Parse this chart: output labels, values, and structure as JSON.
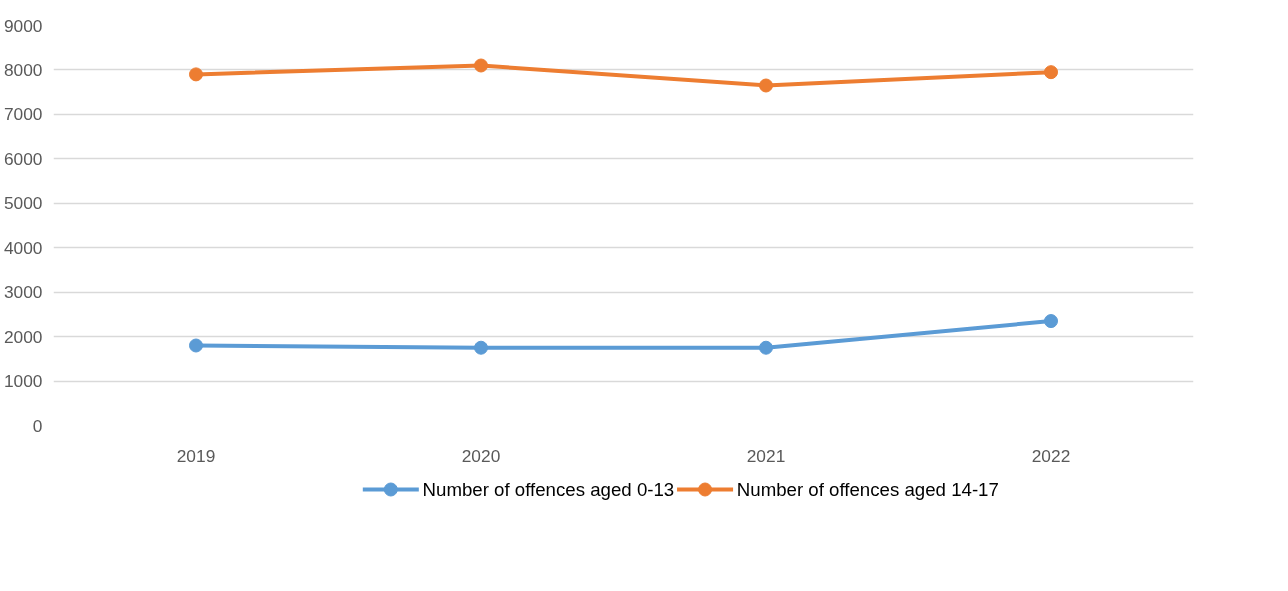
{
  "chart_data": {
    "type": "line",
    "categories": [
      "2019",
      "2020",
      "2021",
      "2022"
    ],
    "series": [
      {
        "name": "Number of offences aged 0-13",
        "color": "#5b9bd5",
        "values": [
          1800,
          1750,
          1750,
          2350
        ]
      },
      {
        "name": "Number of offences aged 14-17",
        "color": "#ed7d31",
        "values": [
          7900,
          8100,
          7650,
          7950
        ]
      }
    ],
    "ylim": [
      0,
      9000
    ],
    "yticks": [
      0,
      1000,
      2000,
      3000,
      4000,
      5000,
      6000,
      7000,
      8000,
      9000
    ],
    "grid": "y",
    "legend": "bottom",
    "marker": "circle",
    "line_style": "solid"
  }
}
